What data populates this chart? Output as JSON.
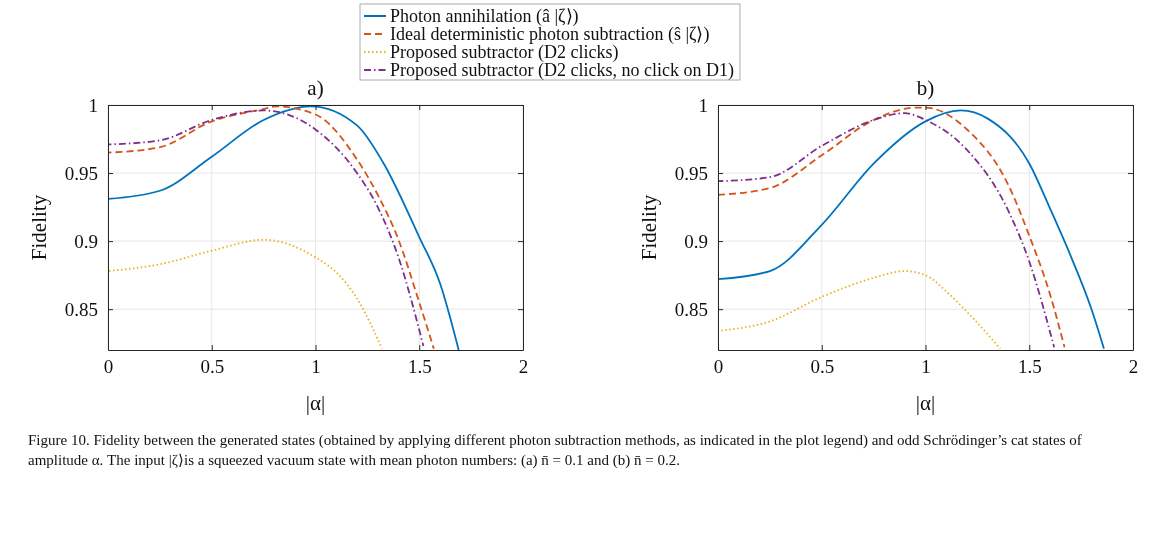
{
  "chart_data": [
    {
      "type": "line",
      "title": "a)",
      "xlabel": "|α|",
      "ylabel": "Fidelity",
      "xlim": [
        0,
        2
      ],
      "ylim": [
        0.82,
        1
      ],
      "xticks": [
        0,
        0.5,
        1,
        1.5,
        2
      ],
      "yticks": [
        0.85,
        0.9,
        0.95,
        1
      ],
      "grid": true,
      "legend": "top",
      "series": [
        {
          "name": "Photon annihilation (â |ζ⟩)",
          "color": "#0072bd",
          "line_style": "solid",
          "x": [
            0,
            0.25,
            0.5,
            0.75,
            0.98,
            1.2,
            1.325,
            1.5,
            1.6,
            1.69
          ],
          "values": [
            0.931,
            0.937,
            0.962,
            0.989,
            0.999,
            0.985,
            0.958,
            0.903,
            0.869,
            0.82
          ]
        },
        {
          "name": "Ideal deterministic photon subtraction (ŝ |ζ⟩)",
          "color": "#d95319",
          "line_style": "dashed",
          "x": [
            0,
            0.25,
            0.5,
            0.75,
            0.81,
            1,
            1.2,
            1.3,
            1.4,
            1.5,
            1.57
          ],
          "values": [
            0.965,
            0.969,
            0.988,
            0.997,
            0.999,
            0.993,
            0.96,
            0.934,
            0.901,
            0.855,
            0.821
          ]
        },
        {
          "name": "Proposed subtractor (D2 clicks)",
          "color": "#edb120",
          "line_style": "dotted",
          "x": [
            0,
            0.25,
            0.5,
            0.75,
            1,
            1.1,
            1.2,
            1.32
          ],
          "values": [
            0.878,
            0.883,
            0.893,
            0.901,
            0.888,
            0.877,
            0.858,
            0.821
          ]
        },
        {
          "name": "Proposed subtractor (D2 clicks, no click on D1)",
          "color": "#7e2f8e",
          "line_style": "dashdot",
          "x": [
            0,
            0.25,
            0.5,
            0.75,
            0.9,
            1,
            1.2,
            1.3,
            1.4,
            1.52
          ],
          "values": [
            0.971,
            0.974,
            0.989,
            0.996,
            0.991,
            0.982,
            0.95,
            0.925,
            0.888,
            0.823
          ]
        }
      ],
      "annotations": [
        "Figure 10. Fidelity between the generated states (obtained by applying different photon subtraction methods, as indicated in the plot legend) and odd Schrödinger’s cat states of amplitude α. The input |ζ⟩is a squeezed vacuum state with mean photon numbers: (a) n̄ = 0.1 and (b) n̄ = 0.2."
      ]
    },
    {
      "type": "line",
      "title": "b)",
      "xlabel": "|α|",
      "ylabel": "Fidelity",
      "xlim": [
        0,
        2
      ],
      "ylim": [
        0.82,
        1
      ],
      "xticks": [
        0,
        0.5,
        1,
        1.5,
        2
      ],
      "yticks": [
        0.85,
        0.9,
        0.95,
        1
      ],
      "grid": true,
      "series": [
        {
          "color": "#0072bd",
          "line_style": "solid",
          "x": [
            0,
            0.25,
            0.5,
            0.75,
            1,
            1.17,
            1.3,
            1.5,
            1.6,
            1.7,
            1.8,
            1.86
          ],
          "values": [
            0.872,
            0.878,
            0.912,
            0.957,
            0.988,
            0.996,
            0.99,
            0.957,
            0.924,
            0.889,
            0.85,
            0.821
          ]
        },
        {
          "color": "#d95319",
          "line_style": "dashed",
          "x": [
            0,
            0.25,
            0.5,
            0.75,
            0.95,
            1,
            1.2,
            1.4,
            1.5,
            1.6,
            1.67
          ],
          "values": [
            0.934,
            0.939,
            0.963,
            0.989,
            0.998,
            0.998,
            0.982,
            0.941,
            0.904,
            0.861,
            0.822
          ]
        },
        {
          "color": "#edb120",
          "line_style": "dotted",
          "x": [
            0,
            0.25,
            0.5,
            0.75,
            0.9,
            1,
            1.1,
            1.2,
            1.36
          ],
          "values": [
            0.834,
            0.841,
            0.859,
            0.873,
            0.878,
            0.875,
            0.863,
            0.848,
            0.821
          ]
        },
        {
          "color": "#7e2f8e",
          "line_style": "dashdot",
          "x": [
            0,
            0.25,
            0.5,
            0.75,
            0.9,
            1,
            1.2,
            1.4,
            1.5,
            1.62
          ],
          "values": [
            0.944,
            0.947,
            0.97,
            0.989,
            0.994,
            0.989,
            0.967,
            0.922,
            0.885,
            0.822
          ]
        }
      ]
    }
  ]
}
